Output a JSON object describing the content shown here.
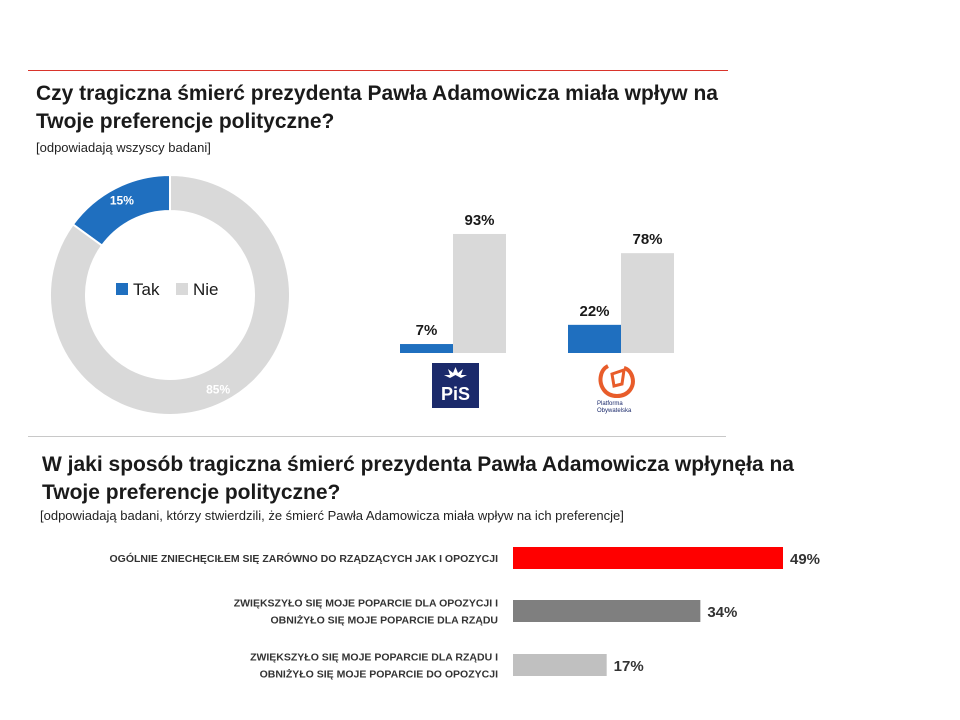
{
  "section1": {
    "title": "Czy tragiczna śmierć prezydenta Pawła Adamowicza miała wpływ na Twoje preferencje polityczne?",
    "note": "[odpowiadają wszyscy badani]"
  },
  "section2": {
    "title": "W jaki sposób tragiczna śmierć prezydenta Pawła Adamowicza wpłynęła na Twoje preferencje polityczne?",
    "note": "[odpowiadają badani, którzy stwierdzili, że śmierć Pawła Adamowicza miała wpływ na ich preferencje]"
  },
  "logos": {
    "pis_text": "PiS",
    "po_text_1": "Platforma",
    "po_text_2": "Obywatelska"
  },
  "chart_data": [
    {
      "type": "pie",
      "title": "",
      "variant": "donut",
      "categories": [
        "Tak",
        "Nie"
      ],
      "values": [
        15,
        85
      ],
      "labels": [
        "15%",
        "85%"
      ],
      "colors": [
        "#1f6fbf",
        "#d9d9d9"
      ],
      "legend": [
        "Tak",
        "Nie"
      ]
    },
    {
      "type": "bar",
      "title": "",
      "categories": [
        "PiS",
        "Platforma Obywatelska"
      ],
      "series": [
        {
          "name": "Tak",
          "values": [
            7,
            22
          ],
          "labels": [
            "7%",
            "22%"
          ],
          "color": "#1f6fbf"
        },
        {
          "name": "Nie",
          "values": [
            93,
            78
          ],
          "labels": [
            "93%",
            "78%"
          ],
          "color": "#d9d9d9"
        }
      ],
      "ylim": [
        0,
        100
      ]
    },
    {
      "type": "bar",
      "orientation": "horizontal",
      "title": "",
      "categories": [
        [
          "OGÓLNIE ZNIECHĘCIŁEM SIĘ ZARÓWNO DO RZĄDZĄCYCH JAK I OPOZYCJI"
        ],
        [
          "ZWIĘKSZYŁO SIĘ MOJE POPARCIE DLA OPOZYCJI I",
          "OBNIŻYŁO SIĘ MOJE POPARCIE DLA RZĄDU"
        ],
        [
          "ZWIĘKSZYŁO SIĘ MOJE POPARCIE DLA RZĄDU I",
          "OBNIŻYŁO SIĘ MOJE POPARCIE DO OPOZYCJI"
        ]
      ],
      "values": [
        49,
        34,
        17
      ],
      "labels": [
        "49%",
        "34%",
        "17%"
      ],
      "colors": [
        "#ff0000",
        "#7f7f7f",
        "#c0c0c0"
      ],
      "xlim": [
        0,
        49
      ]
    }
  ]
}
